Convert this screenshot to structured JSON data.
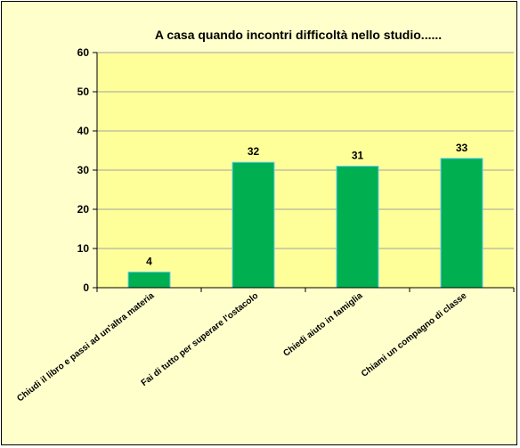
{
  "colors": {
    "chart_background": "#ffffcc",
    "plot_area": "#ffff99",
    "bar_fill": "#00b050",
    "bar_stroke": "#66ccff",
    "gridline": "#a0a0a0",
    "axis": "#000000"
  },
  "chart_data": {
    "type": "bar",
    "title": "A casa quando incontri difficoltà nello studio......",
    "xlabel": "",
    "ylabel": "",
    "categories": [
      "Chiudi il libro e passi ad un'altra materia",
      "Fai di tutto per superare l'ostacolo",
      "Chiedi aiuto in famiglia",
      "Chiami un compagno di classe"
    ],
    "values": [
      4,
      32,
      31,
      33
    ],
    "data_labels": [
      "4",
      "32",
      "31",
      "33"
    ],
    "ylim": [
      0,
      60
    ],
    "yticks": [
      0,
      10,
      20,
      30,
      40,
      50,
      60
    ],
    "ytick_labels": [
      "0",
      "10",
      "20",
      "30",
      "40",
      "50",
      "60"
    ],
    "grid": true,
    "legend": "none"
  }
}
